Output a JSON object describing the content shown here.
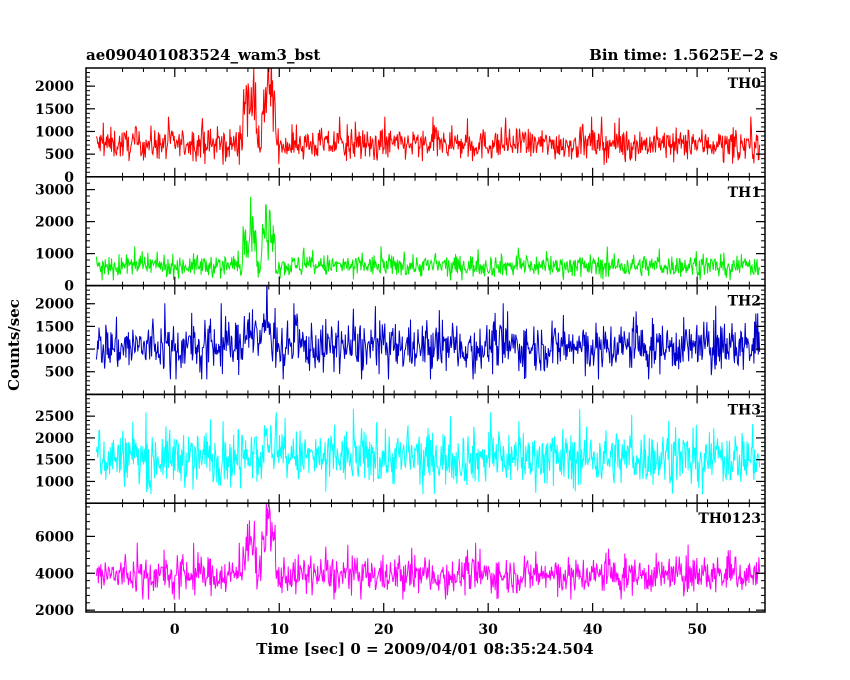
{
  "chart_data": {
    "type": "line",
    "title_left": "ae090401083524_wam3_bst",
    "title_right": "Bin time: 1.5625E−2 s",
    "xlabel": "Time [sec] 0 = 2009/04/01 08:35:24.504",
    "ylabel": "Counts/sec",
    "xlim": [
      -8.5,
      56.5
    ],
    "xticks": [
      0,
      10,
      20,
      30,
      40,
      50
    ],
    "x_start": -7.5,
    "x_end": 56,
    "bin_time": 0.015625,
    "grid": false,
    "legend": "none",
    "panels": [
      {
        "name": "TH0",
        "color": "#ff0000",
        "ylim": [
          0,
          2400
        ],
        "yticks": [
          0,
          500,
          1000,
          1500,
          2000
        ],
        "base_mean": 720,
        "base_spread": 380,
        "burst_level": 1700,
        "burst_spread": 700
      },
      {
        "name": "TH1",
        "color": "#00ee00",
        "ylim": [
          0,
          3400
        ],
        "yticks": [
          0,
          1000,
          2000,
          3000
        ],
        "base_mean": 620,
        "base_spread": 380,
        "burst_level": 1700,
        "burst_spread": 900
      },
      {
        "name": "TH2",
        "color": "#0000cc",
        "ylim": [
          0,
          2400
        ],
        "yticks": [
          500,
          1000,
          1500,
          2000
        ],
        "base_mean": 1050,
        "base_spread": 600,
        "burst_level": 1500,
        "burst_spread": 700
      },
      {
        "name": "TH3",
        "color": "#00ffff",
        "ylim": [
          500,
          3000
        ],
        "yticks": [
          1000,
          1500,
          2000,
          2500
        ],
        "base_mean": 1550,
        "base_spread": 700,
        "burst_level": 1800,
        "burst_spread": 700
      },
      {
        "name": "TH0123",
        "color": "#ff00ff",
        "ylim": [
          1900,
          7800
        ],
        "yticks": [
          2000,
          4000,
          6000
        ],
        "base_mean": 3900,
        "base_spread": 1100,
        "burst_level": 5800,
        "burst_spread": 1500
      }
    ],
    "burst_intervals": [
      [
        6.5,
        7.8
      ],
      [
        8.3,
        9.6
      ]
    ]
  }
}
